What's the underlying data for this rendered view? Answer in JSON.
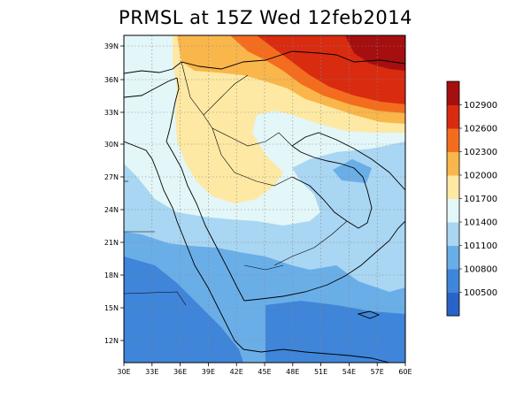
{
  "title": "PRMSL at 15Z Wed 12feb2014",
  "lat_labels": [
    "39N",
    "36N",
    "33N",
    "30N",
    "27N",
    "24N",
    "21N",
    "18N",
    "15N",
    "12N"
  ],
  "lon_labels": [
    "30E",
    "33E",
    "36E",
    "39E",
    "42E",
    "45E",
    "48E",
    "51E",
    "54E",
    "57E",
    "60E"
  ],
  "colorbar": {
    "labels": [
      "102900",
      "102600",
      "102300",
      "102000",
      "101700",
      "101400",
      "101100",
      "100800",
      "100500"
    ],
    "colors": [
      "#a50f0f",
      "#d92b10",
      "#f46d1f",
      "#f9b64a",
      "#fde9a4",
      "#e3f6f8",
      "#a9d6f2",
      "#6aaee8",
      "#3f85d9",
      "#2a63c8"
    ]
  },
  "colors": {
    "c100500": "#3f85d9",
    "c100800": "#6aaee8",
    "c101100": "#a9d6f2",
    "c101400": "#e3f6f8",
    "c101700": "#fde9a4",
    "c102000": "#f9b64a",
    "c102300": "#f46d1f",
    "c102600": "#d92b10",
    "c102900": "#a50f0f"
  }
}
